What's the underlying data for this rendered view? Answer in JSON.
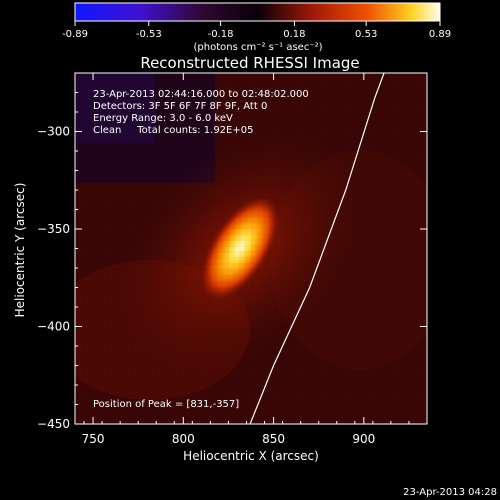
{
  "colorbar": {
    "ticks": [
      "-0.89",
      "-0.53",
      "-0.18",
      "0.18",
      "0.53",
      "0.89"
    ],
    "units": "(photons cm⁻² s⁻¹ asec⁻²)",
    "min": -0.89,
    "max": 0.89,
    "colors": {
      "negative_end": "#1020ff",
      "mid_dark": "#080008",
      "red": "#d03000",
      "orange": "#ff9000",
      "yellow_white": "#ffffe0"
    }
  },
  "chart_data": {
    "type": "heatmap",
    "title": "Reconstructed RHESSI Image",
    "xlabel": "Heliocentric X (arcsec)",
    "ylabel": "Heliocentric Y (arcsec)",
    "xlim": [
      740,
      935
    ],
    "ylim": [
      -450,
      -270
    ],
    "xticks": [
      750,
      800,
      850,
      900
    ],
    "yticks": [
      -300,
      -350,
      -400,
      -450
    ],
    "peak": {
      "x": 831,
      "y": -357
    },
    "source_flux_max": 0.89,
    "limb_curve": [
      [
        837,
        -450
      ],
      [
        850,
        -420
      ],
      [
        870,
        -380
      ],
      [
        890,
        -330
      ],
      [
        906,
        -283
      ],
      [
        912,
        -268
      ]
    ],
    "annotations": {
      "time_range": "23-Apr-2013 02:44:16.000 to 02:48:02.000",
      "detectors": "Detectors: 3F 5F 6F 7F 8F 9F, Att 0",
      "energy": "Energy Range: 3.0 - 6.0 keV",
      "clean": "Clean     Total counts: 1.92E+05",
      "peak_text": "Position of Peak = [831,-357]"
    }
  },
  "footer": {
    "timestamp": "23-Apr-2013 04:28"
  }
}
